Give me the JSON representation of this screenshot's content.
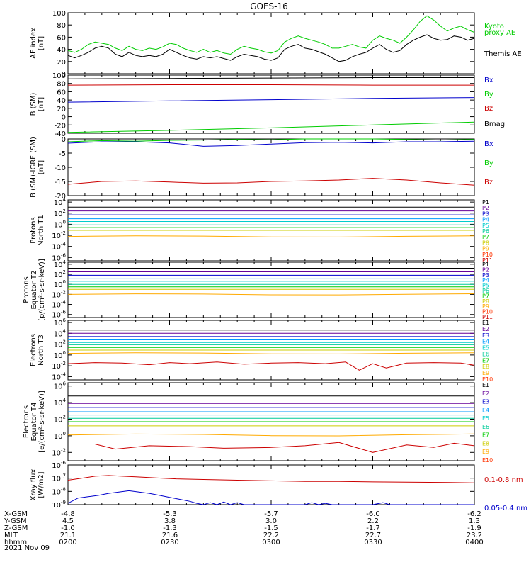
{
  "title": "GOES-16",
  "date": "2021 Nov 09",
  "x_axis": {
    "row_labels": [
      "X-GSM",
      "Y-GSM",
      "Z-GSM",
      "MLT",
      "hhmm"
    ],
    "columns": [
      [
        "-4.8",
        "4.5",
        "-1.0",
        "21.1",
        "0200"
      ],
      [
        "-5.3",
        "3.8",
        "-1.3",
        "21.6",
        "0230"
      ],
      [
        "-5.7",
        "3.0",
        "-1.5",
        "22.2",
        "0300"
      ],
      [
        "-6.0",
        "2.2",
        "-1.7",
        "22.7",
        "0330"
      ],
      [
        "-6.2",
        "1.3",
        "-1.9",
        "23.2",
        "0400"
      ]
    ]
  },
  "colors": {
    "black": "#000000",
    "green": "#00cc00",
    "blue": "#0000cc",
    "red": "#cc0000",
    "p": [
      "#000000",
      "#660099",
      "#0000cc",
      "#0099ff",
      "#00cccc",
      "#00cc99",
      "#00cc00",
      "#cccc00",
      "#ffaa00",
      "#ff3300",
      "#cc0000"
    ]
  },
  "chart_data": [
    {
      "type": "line",
      "id": "ae",
      "ylabel": [
        "AE index",
        "[nT]"
      ],
      "yticks": [
        "100",
        "80",
        "60",
        "40",
        "20",
        "0"
      ],
      "ylim": [
        0,
        100
      ],
      "log": false,
      "legend": [
        {
          "lines": [
            "Kyoto",
            "proxy AE"
          ],
          "color": "#00cc00"
        },
        {
          "lines": [
            "Themis AE"
          ],
          "color": "#000000"
        }
      ],
      "series": [
        {
          "name": "Kyoto proxy AE",
          "color": "#00cc00",
          "x": [
            0,
            2,
            4,
            6,
            8,
            10,
            12,
            14,
            16,
            18,
            20,
            22,
            24,
            26,
            28,
            30,
            32,
            34,
            36,
            38,
            40,
            42,
            44,
            46,
            48,
            50,
            52,
            54,
            56,
            58,
            60,
            62,
            64,
            66,
            68,
            70,
            72,
            74,
            76,
            78,
            80,
            82,
            84,
            86,
            88,
            90,
            92,
            94,
            96,
            98,
            100,
            102,
            104,
            106,
            108,
            110,
            112,
            114,
            116,
            118,
            120
          ],
          "y": [
            38,
            35,
            40,
            48,
            52,
            50,
            48,
            42,
            38,
            45,
            40,
            38,
            42,
            40,
            44,
            50,
            48,
            42,
            38,
            35,
            40,
            35,
            38,
            34,
            32,
            40,
            45,
            42,
            40,
            36,
            34,
            38,
            52,
            58,
            62,
            58,
            55,
            52,
            48,
            42,
            42,
            45,
            48,
            44,
            42,
            55,
            62,
            58,
            55,
            50,
            60,
            72,
            86,
            95,
            88,
            78,
            70,
            75,
            78,
            72,
            68
          ]
        },
        {
          "name": "Themis AE",
          "color": "#000000",
          "x": [
            0,
            2,
            4,
            6,
            8,
            10,
            12,
            14,
            16,
            18,
            20,
            22,
            24,
            26,
            28,
            30,
            32,
            34,
            36,
            38,
            40,
            42,
            44,
            46,
            48,
            50,
            52,
            54,
            56,
            58,
            60,
            62,
            64,
            66,
            68,
            70,
            72,
            74,
            76,
            78,
            80,
            82,
            84,
            86,
            88,
            90,
            92,
            94,
            96,
            98,
            100,
            102,
            104,
            106,
            108,
            110,
            112,
            114,
            116,
            118,
            120
          ],
          "y": [
            30,
            26,
            30,
            35,
            42,
            45,
            42,
            32,
            28,
            35,
            30,
            28,
            30,
            28,
            32,
            40,
            35,
            30,
            26,
            24,
            28,
            26,
            28,
            25,
            22,
            28,
            32,
            30,
            28,
            24,
            22,
            26,
            40,
            45,
            48,
            42,
            40,
            36,
            32,
            26,
            20,
            22,
            28,
            32,
            35,
            42,
            48,
            40,
            35,
            38,
            48,
            55,
            60,
            64,
            58,
            55,
            56,
            62,
            60,
            55,
            58
          ]
        }
      ]
    },
    {
      "type": "line",
      "id": "bsm",
      "ylabel": [
        "B (SM)",
        "[nT]"
      ],
      "yticks": [
        "100",
        "80",
        "60",
        "40",
        "20",
        "0",
        "-20",
        "-40"
      ],
      "ylim": [
        -40,
        100
      ],
      "log": false,
      "legend": [
        {
          "lines": [
            "Bx"
          ],
          "color": "#0000cc"
        },
        {
          "lines": [
            "By"
          ],
          "color": "#00cc00"
        },
        {
          "lines": [
            "Bz"
          ],
          "color": "#cc0000"
        },
        {
          "lines": [
            "Bmag"
          ],
          "color": "#000000"
        }
      ],
      "series": [
        {
          "name": "Bmag",
          "color": "#000000",
          "x": [
            0,
            30,
            60,
            90,
            120
          ],
          "y": [
            91,
            92,
            93,
            94,
            94
          ]
        },
        {
          "name": "Bz",
          "color": "#cc0000",
          "x": [
            0,
            30,
            60,
            90,
            120
          ],
          "y": [
            76,
            77,
            77,
            76,
            76
          ]
        },
        {
          "name": "Bx",
          "color": "#0000cc",
          "x": [
            0,
            30,
            60,
            90,
            120
          ],
          "y": [
            35,
            38,
            41,
            44,
            46
          ]
        },
        {
          "name": "By",
          "color": "#00cc00",
          "x": [
            0,
            30,
            60,
            90,
            120
          ],
          "y": [
            -38,
            -33,
            -27,
            -20,
            -13
          ]
        }
      ]
    },
    {
      "type": "line",
      "id": "dbsm",
      "ylabel": [
        "B (SM)-IGRF (SM)",
        "[nT]"
      ],
      "yticks": [
        "0",
        "-5",
        "-10",
        "-15",
        "-20"
      ],
      "ylim": [
        -20,
        0
      ],
      "log": false,
      "legend": [
        {
          "lines": [
            "Bx"
          ],
          "color": "#0000cc"
        },
        {
          "lines": [
            "By"
          ],
          "color": "#00cc00"
        },
        {
          "lines": [
            "Bz"
          ],
          "color": "#cc0000"
        }
      ],
      "series": [
        {
          "name": "By",
          "color": "#00cc00",
          "x": [
            0,
            10,
            20,
            30,
            40,
            50,
            60,
            70,
            80,
            90,
            100,
            110,
            120
          ],
          "y": [
            -1.0,
            -0.6,
            -0.8,
            -0.5,
            -0.4,
            -0.2,
            -0.3,
            0.1,
            0.2,
            0.1,
            -0.2,
            -0.4,
            -0.2
          ]
        },
        {
          "name": "Bx",
          "color": "#0000cc",
          "x": [
            0,
            10,
            20,
            30,
            40,
            50,
            60,
            70,
            80,
            90,
            100,
            110,
            120
          ],
          "y": [
            -1.5,
            -1.0,
            -1.0,
            -1.4,
            -2.6,
            -2.3,
            -1.8,
            -1.3,
            -1.2,
            -1.4,
            -1.0,
            -1.0,
            -0.8
          ]
        },
        {
          "name": "Bz",
          "color": "#cc0000",
          "x": [
            0,
            10,
            20,
            30,
            40,
            50,
            60,
            70,
            80,
            90,
            100,
            110,
            120
          ],
          "y": [
            -16.0,
            -15.0,
            -14.8,
            -15.2,
            -15.6,
            -15.5,
            -15.0,
            -14.8,
            -14.5,
            -13.9,
            -14.5,
            -15.5,
            -16.3
          ]
        }
      ]
    },
    {
      "type": "line",
      "id": "pn",
      "ylabel": [
        "Protons",
        "North T1"
      ],
      "yticks": [
        "10^4",
        "10^2",
        "10^0",
        "10^-2",
        "10^-4",
        "10^-6"
      ],
      "ylim": [
        -6.6,
        4.4
      ],
      "log": true,
      "legend_labels": [
        "P1",
        "P2",
        "P3",
        "P4",
        "P5",
        "P6",
        "P7",
        "P8",
        "P9",
        "P10",
        "P11"
      ],
      "series_log10": [
        3.1,
        2.4,
        1.7,
        1.0,
        0.5,
        -0.1,
        -0.6,
        -1.1,
        -2.2
      ]
    },
    {
      "type": "line",
      "id": "pe",
      "ylabel": [
        "Protons",
        "Equator T2",
        "[p/(cm²-s-sr-keV)]"
      ],
      "yticks": [
        "10^4",
        "10^2",
        "10^0",
        "10^-2",
        "10^-4",
        "10^-6"
      ],
      "ylim": [
        -6.6,
        4.4
      ],
      "log": true,
      "legend_labels": [
        "P1",
        "P2",
        "P3",
        "P4",
        "P5",
        "P6",
        "P7",
        "P8",
        "P9",
        "P10",
        "P11"
      ],
      "series_log10": [
        3.2,
        2.5,
        1.8,
        1.1,
        0.6,
        0.0,
        -0.5,
        -1.0,
        -2.0
      ]
    },
    {
      "type": "line",
      "id": "en",
      "ylabel": [
        "Electrons",
        "North T3"
      ],
      "yticks": [
        "10^6",
        "10^4",
        "10^2",
        "10^0",
        "10^-2",
        "10^-4"
      ],
      "ylim": [
        -4.6,
        6.4
      ],
      "log": true,
      "legend_labels": [
        "E1",
        "E2",
        "E3",
        "E4",
        "E5",
        "E6",
        "E7",
        "E8",
        "E9",
        "E10"
      ],
      "series_log10": [
        4.6,
        4.0,
        3.4,
        2.8,
        2.3,
        1.9,
        1.4,
        0.9,
        0.3
      ],
      "noisy": {
        "x": [
          0,
          8,
          16,
          24,
          30,
          36,
          44,
          52,
          60,
          68,
          76,
          82,
          86,
          90,
          94,
          100,
          108,
          116,
          120
        ],
        "y": [
          -1.6,
          -1.4,
          -1.5,
          -1.8,
          -1.4,
          -1.6,
          -1.3,
          -1.7,
          -1.5,
          -1.4,
          -1.6,
          -1.3,
          -2.8,
          -1.6,
          -2.4,
          -1.5,
          -1.4,
          -1.5,
          -1.9
        ]
      }
    },
    {
      "type": "line",
      "id": "ee",
      "ylabel": [
        "Electrons",
        "Equator T4",
        "[e/(cm²-s-sr-keV)]"
      ],
      "yticks": [
        "10^6",
        "10^4",
        "10^2",
        "10^0",
        "10^-2"
      ],
      "ylim": [
        -3.0,
        6.4
      ],
      "log": true,
      "legend_labels": [
        "E1",
        "E2",
        "E3",
        "E4",
        "E5",
        "E6",
        "E7",
        "E8",
        "E9",
        "E10"
      ],
      "series_log10": [
        4.8,
        3.9,
        3.4,
        2.9,
        2.5,
        2.1,
        1.7,
        1.2,
        0.1
      ],
      "noisy": {
        "x": [
          8,
          14,
          24,
          36,
          46,
          60,
          70,
          80,
          90,
          100,
          108,
          114,
          120
        ],
        "y": [
          -1.0,
          -1.6,
          -1.2,
          -1.3,
          -1.5,
          -1.4,
          -1.2,
          -0.8,
          -2.0,
          -1.1,
          -1.4,
          -0.9,
          -1.2
        ]
      }
    },
    {
      "type": "line",
      "id": "xray",
      "ylabel": [
        "Xray flux",
        "[W/m2]"
      ],
      "yticks": [
        "10^-6",
        "10^-7",
        "10^-8",
        "10^-9"
      ],
      "ylim": [
        -9.0,
        -6.0
      ],
      "log": true,
      "legend": [
        {
          "lines": [
            "0.1-0.8 nm"
          ],
          "color": "#cc0000"
        },
        {
          "lines": [
            "0.05-0.4 nm"
          ],
          "color": "#0000cc"
        }
      ],
      "series": [
        {
          "name": "0.1-0.8 nm",
          "color": "#cc0000",
          "x": [
            0,
            4,
            8,
            12,
            16,
            20,
            24,
            28,
            32,
            40,
            50,
            60,
            70,
            80,
            90,
            100,
            110,
            120
          ],
          "y": [
            -7.15,
            -7.0,
            -6.85,
            -6.8,
            -6.85,
            -6.9,
            -6.95,
            -7.0,
            -7.05,
            -7.1,
            -7.15,
            -7.2,
            -7.25,
            -7.25,
            -7.28,
            -7.3,
            -7.32,
            -7.35
          ]
        },
        {
          "name": "0.05-0.4 nm",
          "color": "#0000cc",
          "x": [
            0,
            3,
            6,
            9,
            12,
            15,
            18,
            21,
            24,
            27,
            30,
            33,
            36,
            38,
            40,
            42,
            44,
            46,
            48,
            50,
            52,
            54,
            56,
            58,
            60,
            70,
            72,
            74,
            76,
            78,
            80,
            90,
            93,
            95,
            120
          ],
          "y": [
            -8.9,
            -8.5,
            -8.4,
            -8.3,
            -8.15,
            -8.05,
            -7.95,
            -8.05,
            -8.15,
            -8.3,
            -8.45,
            -8.6,
            -8.75,
            -8.9,
            -9.0,
            -8.85,
            -9.0,
            -8.8,
            -9.0,
            -8.85,
            -9.0,
            -9.05,
            -9.05,
            -9.05,
            -9.05,
            -9.05,
            -8.85,
            -9.0,
            -8.9,
            -9.0,
            -9.05,
            -9.05,
            -8.85,
            -9.05,
            -9.05
          ]
        }
      ]
    }
  ]
}
